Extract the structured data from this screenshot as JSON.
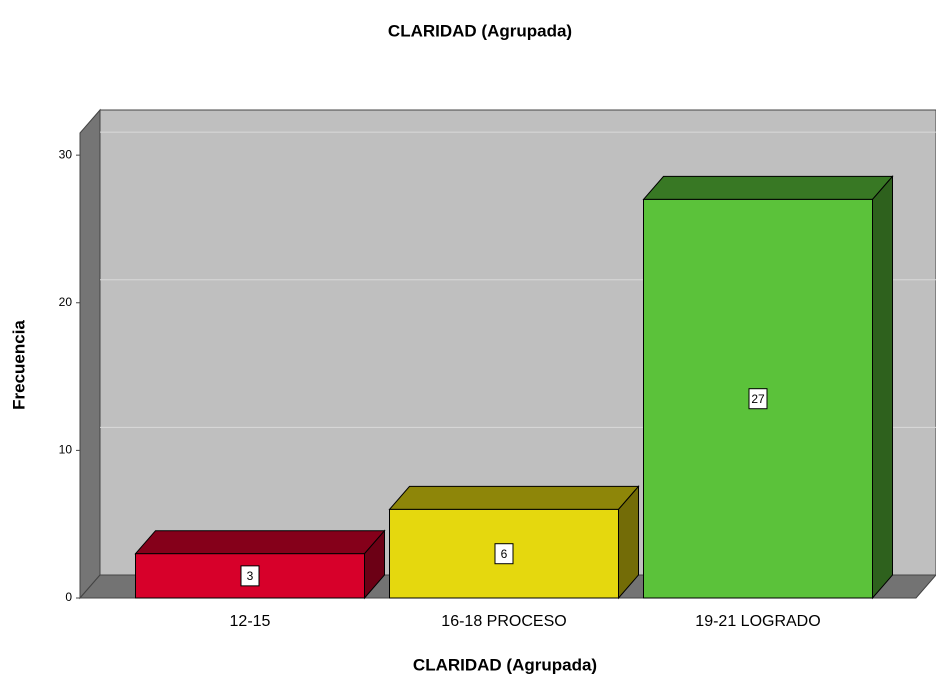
{
  "chart_data": {
    "type": "bar3d",
    "title": "CLARIDAD (Agrupada)",
    "x_label": "CLARIDAD (Agrupada)",
    "y_label": "Frecuencia",
    "categories": [
      "12-15",
      "16-18 PROCESO",
      "19-21 LOGRADO"
    ],
    "values": [
      3,
      6,
      27
    ],
    "colors": [
      "#d7002a",
      "#e5d80e",
      "#5bc23a"
    ],
    "ylim": [
      0,
      31.5
    ],
    "yticks": [
      0,
      10,
      20,
      30
    ],
    "grid": true
  }
}
